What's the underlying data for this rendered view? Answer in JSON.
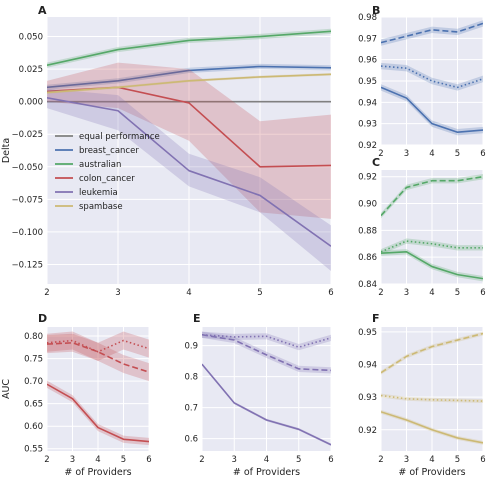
{
  "colors": {
    "panel_bg": "#e8e9f3",
    "grid": "#ffffff",
    "equal_performance": "#808080",
    "breast_cancer": "#4c72b0",
    "australian": "#55a868",
    "colon_cancer": "#c44e52",
    "leukemia": "#8172b2",
    "spambase": "#ccb974"
  },
  "shared_x_label": "# of Providers",
  "chart_data": [
    {
      "panel": "A",
      "type": "line",
      "ylabel": "Delta",
      "xlabel": "",
      "x": [
        2,
        3,
        4,
        5,
        6
      ],
      "xlim": [
        2,
        6
      ],
      "ylim": [
        -0.14,
        0.065
      ],
      "yticks": [
        0.05,
        0.025,
        0.0,
        -0.025,
        -0.05,
        -0.075,
        -0.1,
        -0.125
      ],
      "ytick_labels": [
        "0.050",
        "0.025",
        "0.000",
        "−0.025",
        "−0.050",
        "−0.075",
        "−0.100",
        "−0.125"
      ],
      "xticks": [
        2,
        3,
        4,
        5,
        6
      ],
      "xtick_labels": [
        "2",
        "3",
        "4",
        "5",
        "6"
      ],
      "legend_position": "bottom-left",
      "series": [
        {
          "name": "equal performance",
          "key": "equal_performance",
          "values": [
            0,
            0,
            0,
            0,
            0
          ],
          "band": 0
        },
        {
          "name": "breast_cancer",
          "key": "breast_cancer",
          "values": [
            0.011,
            0.016,
            0.024,
            0.027,
            0.026
          ],
          "band": 0.002
        },
        {
          "name": "australian",
          "key": "australian",
          "values": [
            0.028,
            0.04,
            0.047,
            0.05,
            0.054
          ],
          "band": 0.002
        },
        {
          "name": "colon_cancer",
          "key": "colon_cancer",
          "lower": [
            0.0,
            -0.005,
            -0.03,
            -0.085,
            -0.09
          ],
          "upper": [
            0.016,
            0.03,
            0.025,
            -0.015,
            -0.01
          ],
          "values": [
            0.008,
            0.011,
            -0.001,
            -0.05,
            -0.049
          ]
        },
        {
          "name": "leukemia",
          "key": "leukemia",
          "lower": [
            -0.005,
            -0.022,
            -0.065,
            -0.085,
            -0.13
          ],
          "upper": [
            0.01,
            0.005,
            -0.04,
            -0.058,
            -0.095
          ],
          "values": [
            0.003,
            -0.007,
            -0.053,
            -0.072,
            -0.111
          ]
        },
        {
          "name": "spambase",
          "key": "spambase",
          "values": [
            0.007,
            0.011,
            0.016,
            0.019,
            0.021
          ],
          "band": 0.001
        }
      ]
    },
    {
      "panel": "B",
      "type": "line",
      "xlabel": "",
      "ylabel": "",
      "x": [
        2,
        3,
        4,
        5,
        6
      ],
      "xlim": [
        2,
        6
      ],
      "ylim": [
        0.92,
        0.98
      ],
      "yticks": [
        0.92,
        0.93,
        0.94,
        0.95,
        0.96,
        0.97,
        0.98
      ],
      "ytick_labels": [
        "0.92",
        "0.93",
        "0.94",
        "0.95",
        "0.96",
        "0.97",
        "0.98"
      ],
      "xticks": [
        2,
        3,
        4,
        5,
        6
      ],
      "xtick_labels": [
        "2",
        "3",
        "4",
        "5",
        "6"
      ],
      "color_key": "breast_cancer",
      "series": [
        {
          "style": "dashed",
          "values": [
            0.968,
            0.971,
            0.974,
            0.973,
            0.977
          ],
          "band": 0.0015
        },
        {
          "style": "dotted",
          "values": [
            0.957,
            0.956,
            0.95,
            0.947,
            0.951
          ],
          "band": 0.0015
        },
        {
          "style": "solid",
          "values": [
            0.947,
            0.942,
            0.93,
            0.926,
            0.927
          ],
          "band": 0.0015
        }
      ]
    },
    {
      "panel": "C",
      "type": "line",
      "xlabel": "",
      "ylabel": "",
      "x": [
        2,
        3,
        4,
        5,
        6
      ],
      "xlim": [
        2,
        6
      ],
      "ylim": [
        0.84,
        0.925
      ],
      "yticks": [
        0.84,
        0.86,
        0.88,
        0.9,
        0.92
      ],
      "ytick_labels": [
        "0.84",
        "0.86",
        "0.88",
        "0.90",
        "0.92"
      ],
      "xticks": [
        2,
        3,
        4,
        5,
        6
      ],
      "xtick_labels": [
        "2",
        "3",
        "4",
        "5",
        "6"
      ],
      "color_key": "australian",
      "series": [
        {
          "style": "dashed",
          "values": [
            0.891,
            0.912,
            0.917,
            0.917,
            0.92
          ],
          "band": 0.002
        },
        {
          "style": "dotted",
          "values": [
            0.864,
            0.872,
            0.87,
            0.867,
            0.867
          ],
          "band": 0.002
        },
        {
          "style": "solid",
          "values": [
            0.863,
            0.864,
            0.853,
            0.847,
            0.844
          ],
          "band": 0.002
        }
      ]
    },
    {
      "panel": "D",
      "type": "line",
      "xlabel": "# of Providers",
      "ylabel": "AUC",
      "x": [
        2,
        3,
        4,
        5,
        6
      ],
      "xlim": [
        2,
        6
      ],
      "ylim": [
        0.545,
        0.82
      ],
      "yticks": [
        0.55,
        0.6,
        0.65,
        0.7,
        0.75,
        0.8
      ],
      "ytick_labels": [
        "0.55",
        "0.60",
        "0.65",
        "0.70",
        "0.75",
        "0.80"
      ],
      "xticks": [
        2,
        3,
        4,
        5,
        6
      ],
      "xtick_labels": [
        "2",
        "3",
        "4",
        "5",
        "6"
      ],
      "color_key": "colon_cancer",
      "series": [
        {
          "style": "dashed",
          "values": [
            0.782,
            0.785,
            0.765,
            0.738,
            0.72
          ],
          "band": 0.02
        },
        {
          "style": "dotted",
          "values": [
            0.785,
            0.79,
            0.765,
            0.79,
            0.772
          ],
          "band": 0.02
        },
        {
          "style": "solid",
          "values": [
            0.693,
            0.661,
            0.597,
            0.571,
            0.566
          ],
          "band": 0.008
        }
      ]
    },
    {
      "panel": "E",
      "type": "line",
      "xlabel": "# of Providers",
      "ylabel": "",
      "x": [
        2,
        3,
        4,
        5,
        6
      ],
      "xlim": [
        2,
        6
      ],
      "ylim": [
        0.56,
        0.96
      ],
      "yticks": [
        0.6,
        0.7,
        0.8,
        0.9
      ],
      "ytick_labels": [
        "0.6",
        "0.7",
        "0.8",
        "0.9"
      ],
      "xticks": [
        2,
        3,
        4,
        5,
        6
      ],
      "xtick_labels": [
        "2",
        "3",
        "4",
        "5",
        "6"
      ],
      "color_key": "leukemia",
      "series": [
        {
          "style": "dashed",
          "values": [
            0.935,
            0.918,
            0.87,
            0.825,
            0.82
          ],
          "band": 0.01
        },
        {
          "style": "dotted",
          "values": [
            0.935,
            0.928,
            0.93,
            0.895,
            0.925
          ],
          "band": 0.01
        },
        {
          "style": "solid",
          "values": [
            0.84,
            0.715,
            0.66,
            0.63,
            0.58
          ],
          "band": 0.004
        }
      ]
    },
    {
      "panel": "F",
      "type": "line",
      "xlabel": "# of Providers",
      "ylabel": "",
      "x": [
        2,
        3,
        4,
        5,
        6
      ],
      "xlim": [
        2,
        6
      ],
      "ylim": [
        0.9135,
        0.9515
      ],
      "yticks": [
        0.92,
        0.93,
        0.94,
        0.95
      ],
      "ytick_labels": [
        "0.92",
        "0.93",
        "0.94",
        "0.95"
      ],
      "xticks": [
        2,
        3,
        4,
        5,
        6
      ],
      "xtick_labels": [
        "2",
        "3",
        "4",
        "5",
        "6"
      ],
      "color_key": "spambase",
      "series": [
        {
          "style": "dashed",
          "values": [
            0.9375,
            0.9425,
            0.9455,
            0.9475,
            0.9495
          ],
          "band": 0.0006
        },
        {
          "style": "dotted",
          "values": [
            0.9305,
            0.9295,
            0.9292,
            0.929,
            0.9288
          ],
          "band": 0.0006
        },
        {
          "style": "solid",
          "values": [
            0.9255,
            0.923,
            0.92,
            0.9175,
            0.916
          ],
          "band": 0.0006
        }
      ]
    }
  ]
}
